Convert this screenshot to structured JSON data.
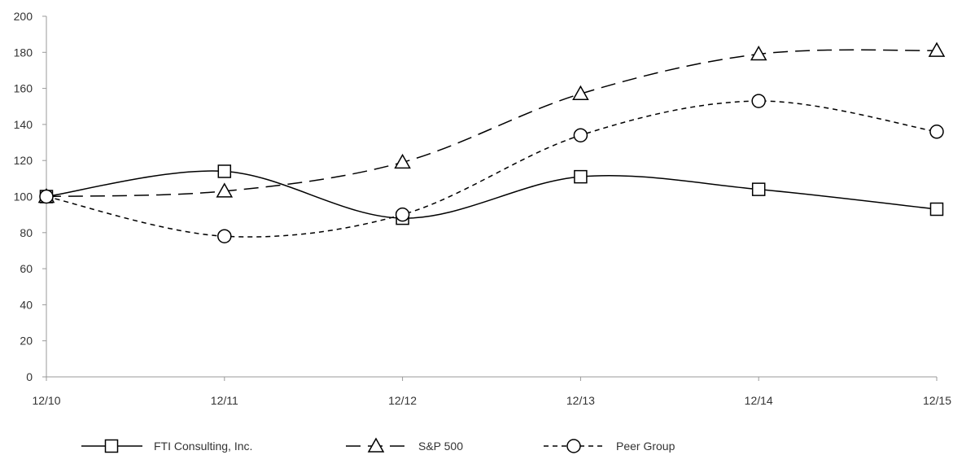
{
  "chart_data": {
    "type": "line",
    "title": "",
    "xlabel": "",
    "ylabel": "",
    "categories": [
      "12/10",
      "12/11",
      "12/12",
      "12/13",
      "12/14",
      "12/15"
    ],
    "ylim": [
      0,
      200
    ],
    "yticks": [
      0,
      20,
      40,
      60,
      80,
      100,
      120,
      140,
      160,
      180,
      200
    ],
    "grid": false,
    "legend_position": "bottom",
    "series": [
      {
        "name": "FTI Consulting, Inc.",
        "values": [
          100,
          114,
          88,
          111,
          104,
          93
        ],
        "marker": "square",
        "dash": "solid",
        "color": "#000000"
      },
      {
        "name": "S&P 500",
        "values": [
          100,
          103,
          119,
          157,
          179,
          181
        ],
        "marker": "triangle",
        "dash": "long-dash",
        "color": "#000000"
      },
      {
        "name": "Peer Group",
        "values": [
          100,
          78,
          90,
          134,
          153,
          136
        ],
        "marker": "circle",
        "dash": "short-dash",
        "color": "#000000"
      }
    ]
  }
}
